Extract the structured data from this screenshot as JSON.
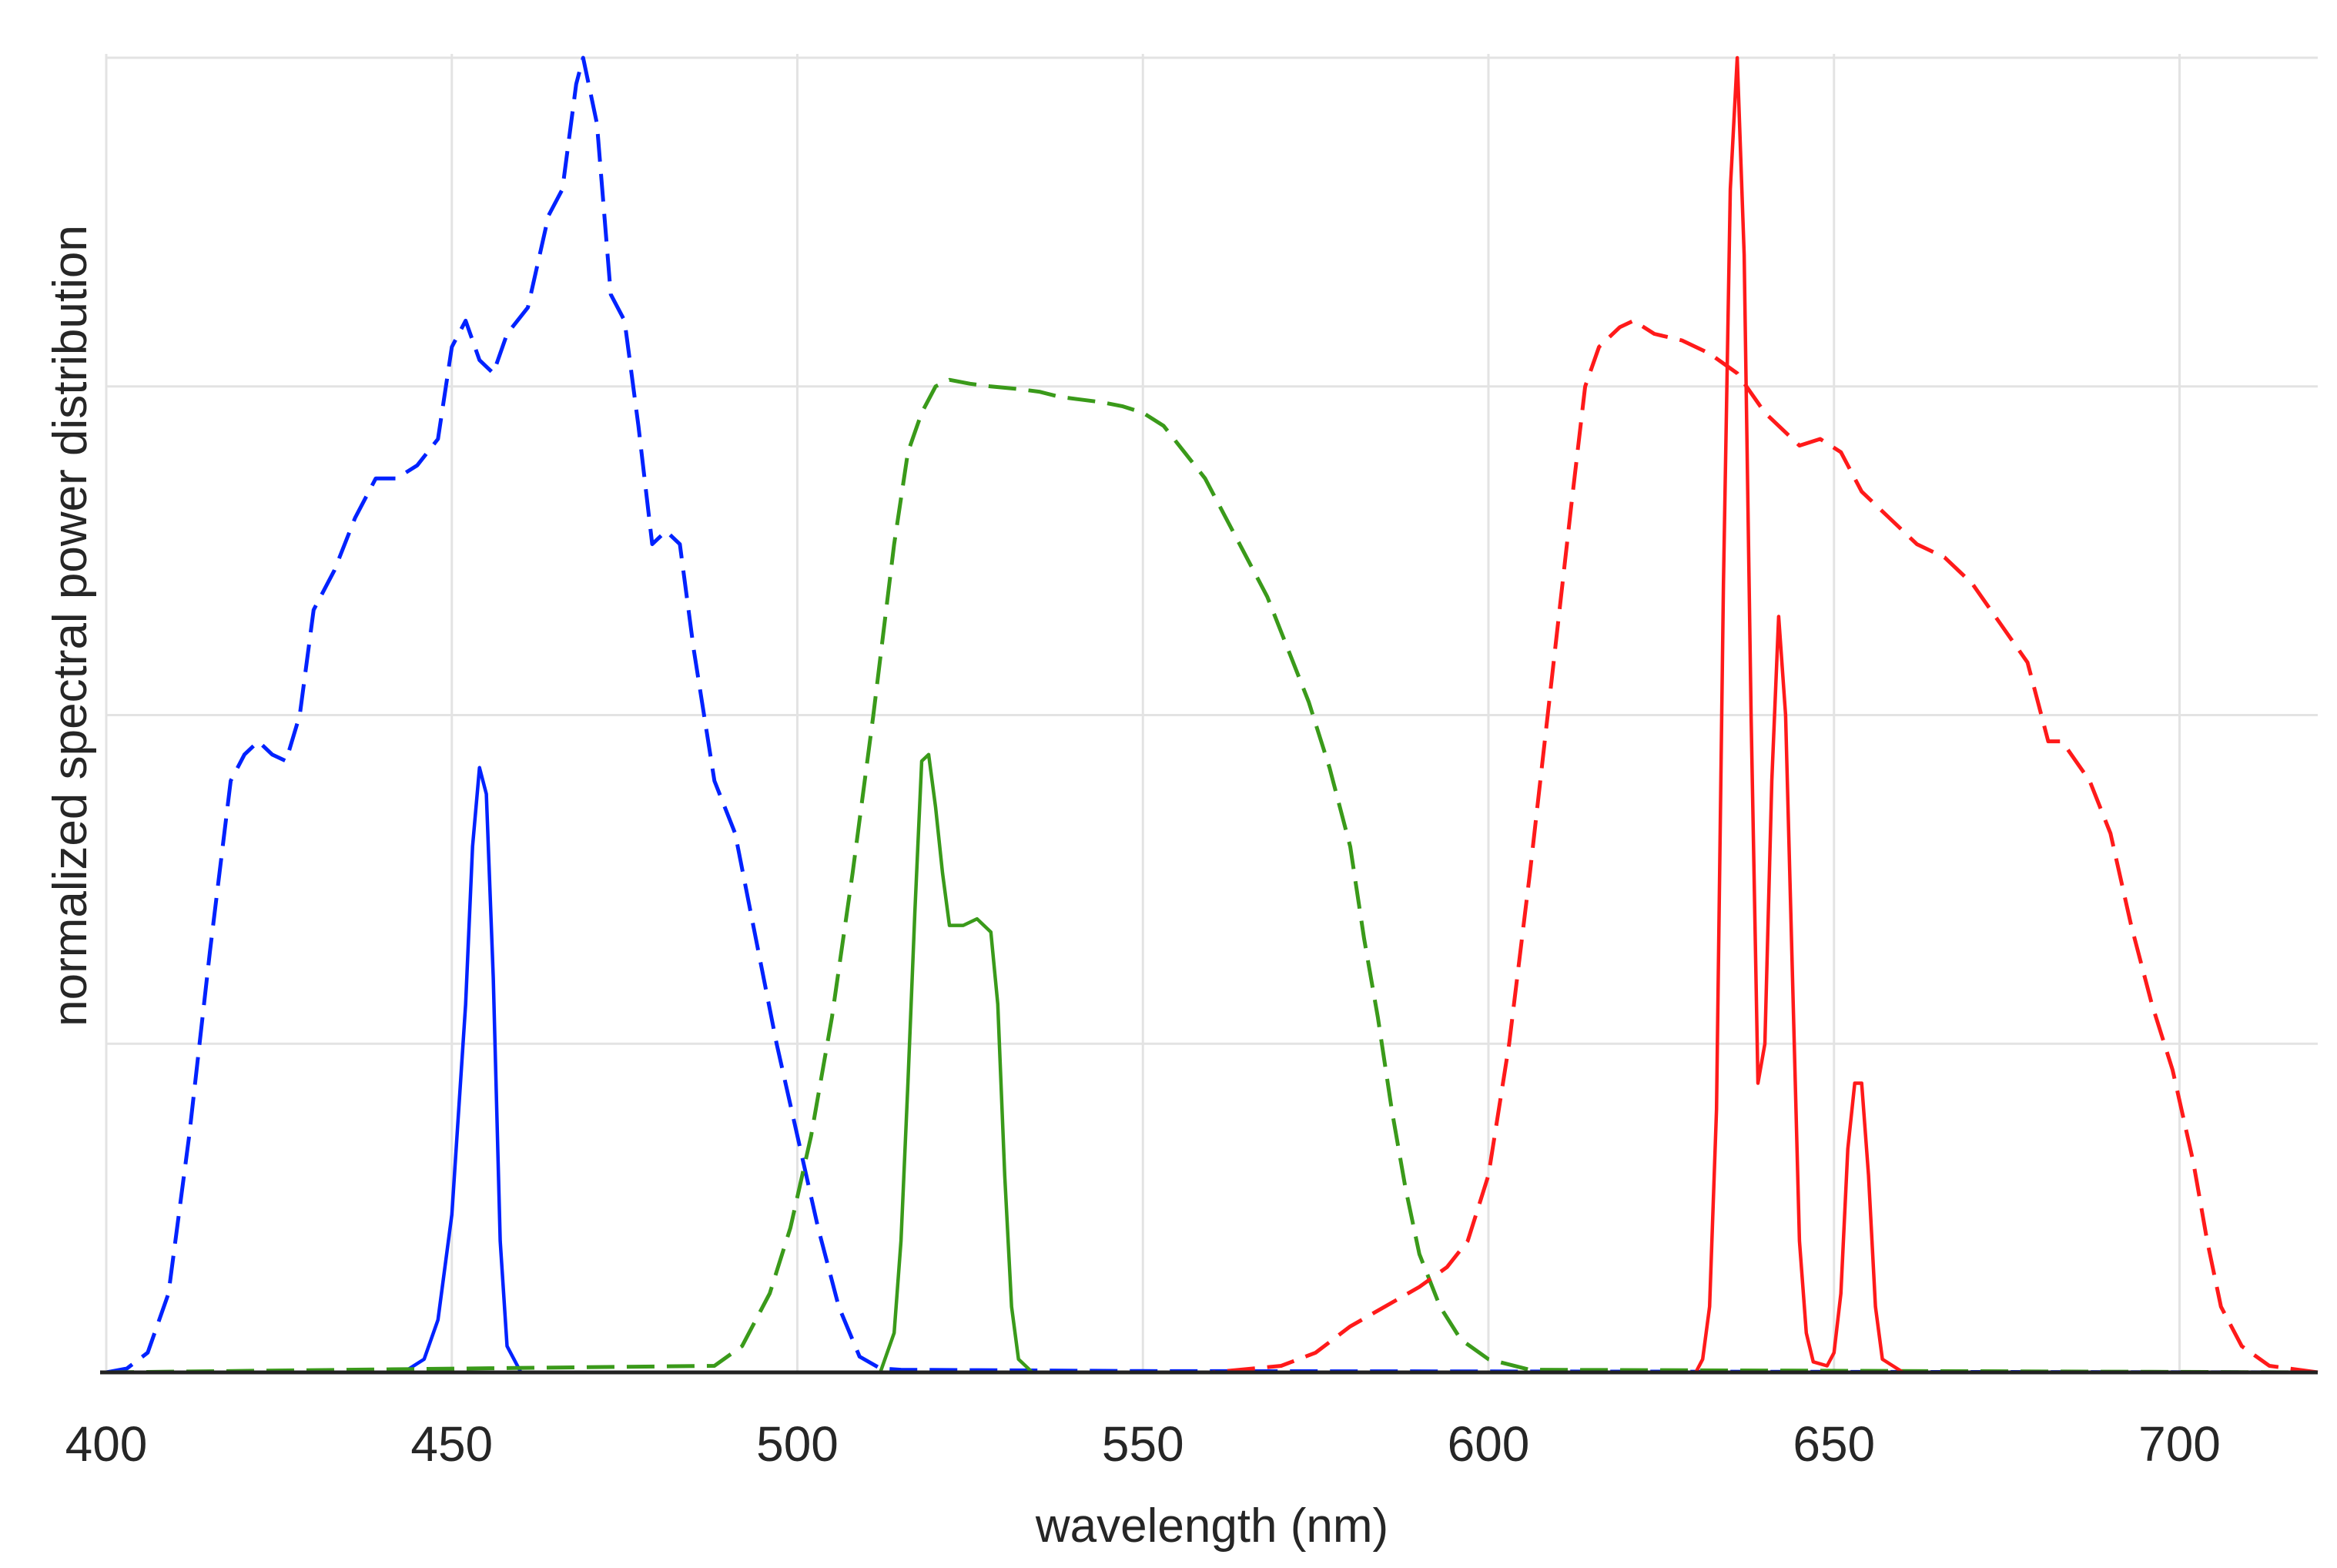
{
  "chart_data": {
    "type": "line",
    "title": "",
    "xlabel": "wavelength (nm)",
    "ylabel": "normalized spectral power distribution",
    "xlim": [
      400,
      720
    ],
    "ylim": [
      0,
      1.0
    ],
    "xticks": [
      400,
      450,
      500,
      550,
      600,
      650,
      700
    ],
    "ygrid": [
      0.25,
      0.5,
      0.75,
      1.0
    ],
    "grid": true,
    "legend": "none",
    "series": [
      {
        "color": "#0022ff",
        "dash": "long-dash",
        "points": [
          [
            400,
            0
          ],
          [
            403,
            0.003
          ],
          [
            406,
            0.015
          ],
          [
            409,
            0.06
          ],
          [
            412,
            0.18
          ],
          [
            415,
            0.32
          ],
          [
            418,
            0.45
          ],
          [
            420,
            0.47
          ],
          [
            422,
            0.48
          ],
          [
            424,
            0.47
          ],
          [
            426,
            0.465
          ],
          [
            428,
            0.5
          ],
          [
            430,
            0.58
          ],
          [
            433,
            0.61
          ],
          [
            436,
            0.65
          ],
          [
            439,
            0.68
          ],
          [
            442,
            0.68
          ],
          [
            445,
            0.69
          ],
          [
            448,
            0.71
          ],
          [
            450,
            0.78
          ],
          [
            452,
            0.8
          ],
          [
            454,
            0.77
          ],
          [
            456,
            0.76
          ],
          [
            458,
            0.79
          ],
          [
            461,
            0.81
          ],
          [
            464,
            0.88
          ],
          [
            466,
            0.9
          ],
          [
            468,
            0.98
          ],
          [
            469,
            1.0
          ],
          [
            471,
            0.95
          ],
          [
            473,
            0.82
          ],
          [
            475,
            0.8
          ],
          [
            477,
            0.72
          ],
          [
            479,
            0.63
          ],
          [
            481,
            0.64
          ],
          [
            483,
            0.63
          ],
          [
            485,
            0.55
          ],
          [
            488,
            0.45
          ],
          [
            491,
            0.41
          ],
          [
            494,
            0.33
          ],
          [
            497,
            0.25
          ],
          [
            500,
            0.18
          ],
          [
            503,
            0.11
          ],
          [
            506,
            0.05
          ],
          [
            509,
            0.012
          ],
          [
            512,
            0.003
          ],
          [
            515,
            0.002
          ],
          [
            550,
            0.001
          ],
          [
            720,
            0
          ]
        ]
      },
      {
        "color": "#0022ff",
        "dash": "solid",
        "points": [
          [
            400,
            0
          ],
          [
            443,
            0
          ],
          [
            446,
            0.01
          ],
          [
            448,
            0.04
          ],
          [
            450,
            0.12
          ],
          [
            452,
            0.28
          ],
          [
            453,
            0.4
          ],
          [
            454,
            0.46
          ],
          [
            455,
            0.44
          ],
          [
            456,
            0.3
          ],
          [
            457,
            0.1
          ],
          [
            458,
            0.02
          ],
          [
            460,
            0
          ],
          [
            720,
            0
          ]
        ]
      },
      {
        "color": "#3a9a1a",
        "dash": "long-dash",
        "points": [
          [
            400,
            0
          ],
          [
            488,
            0.005
          ],
          [
            492,
            0.02
          ],
          [
            496,
            0.06
          ],
          [
            499,
            0.11
          ],
          [
            502,
            0.18
          ],
          [
            505,
            0.27
          ],
          [
            508,
            0.38
          ],
          [
            511,
            0.5
          ],
          [
            514,
            0.63
          ],
          [
            516,
            0.7
          ],
          [
            518,
            0.73
          ],
          [
            520,
            0.75
          ],
          [
            522,
            0.755
          ],
          [
            525,
            0.752
          ],
          [
            528,
            0.75
          ],
          [
            532,
            0.748
          ],
          [
            535,
            0.746
          ],
          [
            538,
            0.742
          ],
          [
            541,
            0.74
          ],
          [
            544,
            0.738
          ],
          [
            547,
            0.735
          ],
          [
            550,
            0.73
          ],
          [
            553,
            0.72
          ],
          [
            556,
            0.7
          ],
          [
            559,
            0.68
          ],
          [
            562,
            0.65
          ],
          [
            565,
            0.62
          ],
          [
            568,
            0.59
          ],
          [
            571,
            0.55
          ],
          [
            574,
            0.51
          ],
          [
            577,
            0.46
          ],
          [
            580,
            0.4
          ],
          [
            582,
            0.33
          ],
          [
            584,
            0.27
          ],
          [
            586,
            0.2
          ],
          [
            588,
            0.14
          ],
          [
            590,
            0.09
          ],
          [
            593,
            0.05
          ],
          [
            596,
            0.025
          ],
          [
            600,
            0.01
          ],
          [
            606,
            0.002
          ],
          [
            720,
            0
          ]
        ]
      },
      {
        "color": "#3a9a1a",
        "dash": "solid",
        "points": [
          [
            400,
            0
          ],
          [
            512,
            0
          ],
          [
            514,
            0.03
          ],
          [
            515,
            0.1
          ],
          [
            516,
            0.22
          ],
          [
            517,
            0.35
          ],
          [
            518,
            0.465
          ],
          [
            519,
            0.47
          ],
          [
            520,
            0.43
          ],
          [
            521,
            0.38
          ],
          [
            522,
            0.34
          ],
          [
            524,
            0.34
          ],
          [
            526,
            0.345
          ],
          [
            528,
            0.335
          ],
          [
            529,
            0.28
          ],
          [
            530,
            0.15
          ],
          [
            531,
            0.05
          ],
          [
            532,
            0.01
          ],
          [
            534,
            0
          ],
          [
            720,
            0
          ]
        ]
      },
      {
        "color": "#ff1a1a",
        "dash": "long-dash",
        "points": [
          [
            400,
            0
          ],
          [
            560,
            0
          ],
          [
            570,
            0.005
          ],
          [
            575,
            0.015
          ],
          [
            580,
            0.035
          ],
          [
            585,
            0.05
          ],
          [
            590,
            0.065
          ],
          [
            594,
            0.08
          ],
          [
            597,
            0.1
          ],
          [
            600,
            0.15
          ],
          [
            603,
            0.25
          ],
          [
            606,
            0.38
          ],
          [
            609,
            0.52
          ],
          [
            612,
            0.66
          ],
          [
            614,
            0.75
          ],
          [
            616,
            0.78
          ],
          [
            619,
            0.795
          ],
          [
            621,
            0.8
          ],
          [
            624,
            0.79
          ],
          [
            628,
            0.785
          ],
          [
            632,
            0.775
          ],
          [
            636,
            0.76
          ],
          [
            640,
            0.73
          ],
          [
            645,
            0.705
          ],
          [
            648,
            0.71
          ],
          [
            651,
            0.7
          ],
          [
            654,
            0.67
          ],
          [
            658,
            0.65
          ],
          [
            662,
            0.63
          ],
          [
            666,
            0.62
          ],
          [
            670,
            0.6
          ],
          [
            674,
            0.57
          ],
          [
            678,
            0.54
          ],
          [
            681,
            0.48
          ],
          [
            683,
            0.48
          ],
          [
            687,
            0.45
          ],
          [
            690,
            0.41
          ],
          [
            693,
            0.34
          ],
          [
            696,
            0.28
          ],
          [
            699,
            0.23
          ],
          [
            702,
            0.16
          ],
          [
            704,
            0.1
          ],
          [
            706,
            0.05
          ],
          [
            709,
            0.02
          ],
          [
            713,
            0.005
          ],
          [
            720,
            0
          ]
        ]
      },
      {
        "color": "#ff1a1a",
        "dash": "solid",
        "points": [
          [
            400,
            0
          ],
          [
            630,
            0
          ],
          [
            631,
            0.01
          ],
          [
            632,
            0.05
          ],
          [
            633,
            0.2
          ],
          [
            634,
            0.6
          ],
          [
            635,
            0.9
          ],
          [
            636,
            1.0
          ],
          [
            637,
            0.85
          ],
          [
            638,
            0.5
          ],
          [
            639,
            0.22
          ],
          [
            640,
            0.25
          ],
          [
            641,
            0.45
          ],
          [
            642,
            0.575
          ],
          [
            643,
            0.5
          ],
          [
            644,
            0.3
          ],
          [
            645,
            0.1
          ],
          [
            646,
            0.03
          ],
          [
            647,
            0.008
          ],
          [
            649,
            0.005
          ],
          [
            650,
            0.015
          ],
          [
            651,
            0.06
          ],
          [
            652,
            0.17
          ],
          [
            653,
            0.22
          ],
          [
            654,
            0.22
          ],
          [
            655,
            0.15
          ],
          [
            656,
            0.05
          ],
          [
            657,
            0.01
          ],
          [
            660,
            0
          ],
          [
            720,
            0
          ]
        ]
      }
    ]
  }
}
